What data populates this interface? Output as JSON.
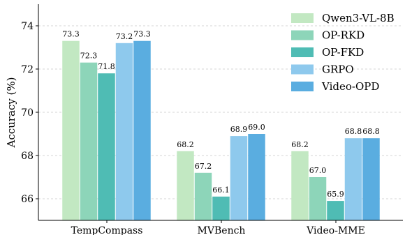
{
  "chart_data": {
    "type": "bar",
    "categories": [
      "TempCompass",
      "MVBench",
      "Video-MME"
    ],
    "series": [
      {
        "name": "Qwen3-VL-8B",
        "color": "#c2e8c2",
        "values": [
          73.3,
          68.2,
          68.2
        ]
      },
      {
        "name": "OP-RKD",
        "color": "#8dd5b9",
        "values": [
          72.3,
          67.2,
          67.0
        ]
      },
      {
        "name": "OP-FKD",
        "color": "#4fbcb4",
        "values": [
          71.8,
          66.1,
          65.9
        ]
      },
      {
        "name": "GRPO",
        "color": "#8ec9ed",
        "values": [
          73.2,
          68.9,
          68.8
        ]
      },
      {
        "name": "Video-OPD",
        "color": "#5aade0",
        "values": [
          73.3,
          69.0,
          68.8
        ]
      }
    ],
    "value_labels": [
      [
        "73.3",
        "68.2",
        "68.2"
      ],
      [
        "72.3",
        "67.2",
        "67.0"
      ],
      [
        "71.8",
        "66.1",
        "65.9"
      ],
      [
        "73.2",
        "68.9",
        "68.8"
      ],
      [
        "73.3",
        "69.0",
        "68.8"
      ]
    ],
    "ylabel": "Accuracy (%)",
    "xlabel": "",
    "ylim": [
      65,
      75
    ],
    "yticks": [
      "66",
      "68",
      "70",
      "72",
      "74"
    ],
    "grid": "horizontal dashed",
    "legend_position": "top-right"
  }
}
